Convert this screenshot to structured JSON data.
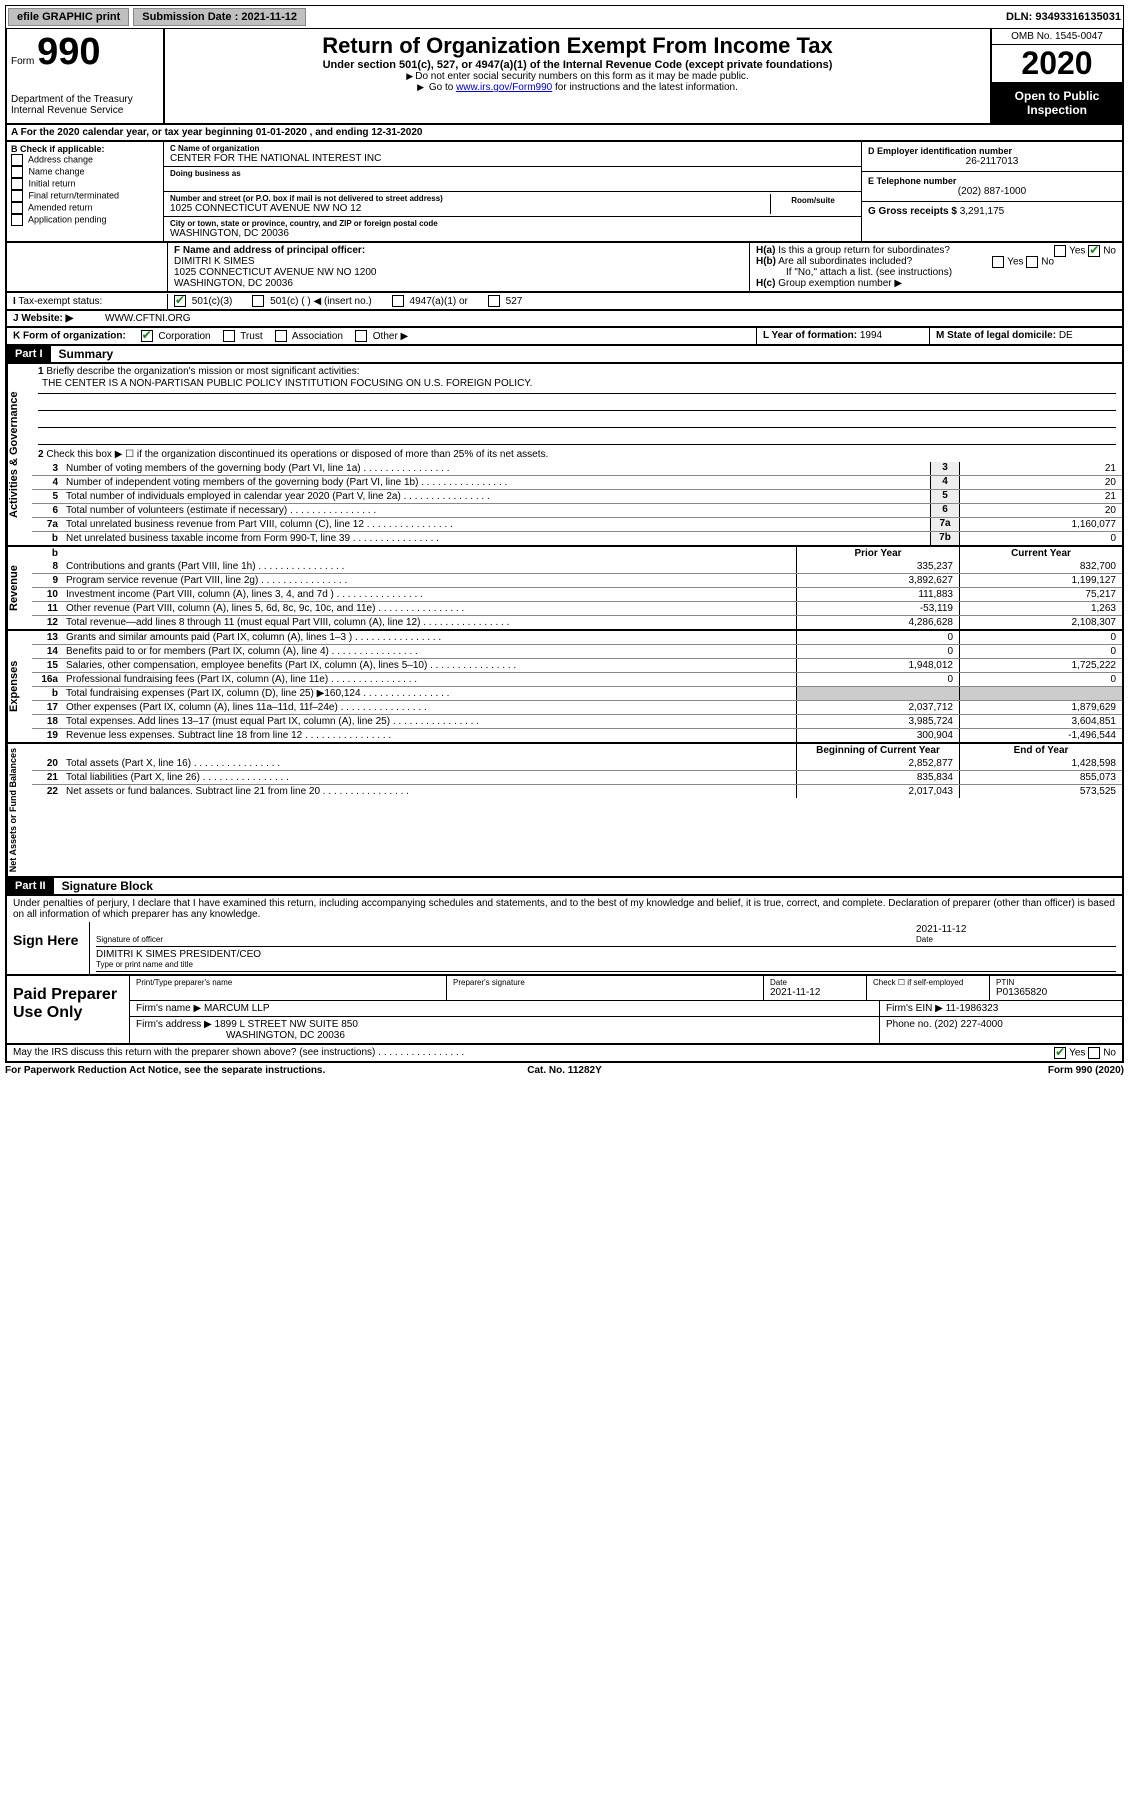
{
  "topbar": {
    "efile": "efile GRAPHIC print",
    "sub_label": "Submission Date : ",
    "sub_date": "2021-11-12",
    "dln": "DLN: 93493316135031"
  },
  "header": {
    "form_word": "Form",
    "form_num": "990",
    "dept": "Department of the Treasury\nInternal Revenue Service",
    "title": "Return of Organization Exempt From Income Tax",
    "subtitle": "Under section 501(c), 527, or 4947(a)(1) of the Internal Revenue Code (except private foundations)",
    "note1": "Do not enter social security numbers on this form as it may be made public.",
    "note2_pre": "Go to ",
    "note2_link": "www.irs.gov/Form990",
    "note2_post": " for instructions and the latest information.",
    "omb": "OMB No. 1545-0047",
    "year": "2020",
    "inspect": "Open to Public Inspection"
  },
  "row_a": "A  For the 2020 calendar year, or tax year beginning 01-01-2020    , and ending 12-31-2020",
  "box_b": {
    "label": "B Check if applicable:",
    "opts": [
      "Address change",
      "Name change",
      "Initial return",
      "Final return/terminated",
      "Amended return",
      "Application pending"
    ]
  },
  "box_c": {
    "name_lbl": "C Name of organization",
    "name": "CENTER FOR THE NATIONAL INTEREST INC",
    "dba_lbl": "Doing business as",
    "addr_lbl": "Number and street (or P.O. box if mail is not delivered to street address)",
    "suite_lbl": "Room/suite",
    "addr": "1025 CONNECTICUT AVENUE NW NO 12",
    "city_lbl": "City or town, state or province, country, and ZIP or foreign postal code",
    "city": "WASHINGTON, DC  20036"
  },
  "box_d": {
    "ein_lbl": "D Employer identification number",
    "ein": "26-2117013",
    "phone_lbl": "E Telephone number",
    "phone": "(202) 887-1000",
    "gross_lbl": "G Gross receipts $",
    "gross": "3,291,175"
  },
  "box_f": {
    "lbl": "F  Name and address of principal officer:",
    "name": "DIMITRI K SIMES",
    "addr1": "1025 CONNECTICUT AVENUE NW NO 1200",
    "addr2": "WASHINGTON, DC  20036"
  },
  "box_h": {
    "ha": "Is this a group return for subordinates?",
    "hb": "Are all subordinates included?",
    "hnote": "If \"No,\" attach a list. (see instructions)",
    "hc": "Group exemption number ▶"
  },
  "tax_status_lbl": "Tax-exempt status:",
  "tax_opts": [
    "501(c)(3)",
    "501(c) (   ) ◀ (insert no.)",
    "4947(a)(1) or",
    "527"
  ],
  "website_lbl": "Website: ▶",
  "website": "WWW.CFTNI.ORG",
  "box_k": "K Form of organization:",
  "k_opts": [
    "Corporation",
    "Trust",
    "Association",
    "Other ▶"
  ],
  "box_l_lbl": "L Year of formation:",
  "box_l": "1994",
  "box_m_lbl": "M State of legal domicile:",
  "box_m": "DE",
  "part1": {
    "hdr": "Part I",
    "title": "Summary",
    "q1": "Briefly describe the organization's mission or most significant activities:",
    "mission": "THE CENTER IS A NON-PARTISAN PUBLIC POLICY INSTITUTION FOCUSING ON U.S. FOREIGN POLICY.",
    "q2": "Check this box ▶ ☐  if the organization discontinued its operations or disposed of more than 25% of its net assets."
  },
  "gov_rows": [
    {
      "n": "3",
      "d": "Number of voting members of the governing body (Part VI, line 1a)",
      "rn": "3",
      "v": "21"
    },
    {
      "n": "4",
      "d": "Number of independent voting members of the governing body (Part VI, line 1b)",
      "rn": "4",
      "v": "20"
    },
    {
      "n": "5",
      "d": "Total number of individuals employed in calendar year 2020 (Part V, line 2a)",
      "rn": "5",
      "v": "21"
    },
    {
      "n": "6",
      "d": "Total number of volunteers (estimate if necessary)",
      "rn": "6",
      "v": "20"
    },
    {
      "n": "7a",
      "d": "Total unrelated business revenue from Part VIII, column (C), line 12",
      "rn": "7a",
      "v": "1,160,077"
    },
    {
      "n": "b",
      "d": "Net unrelated business taxable income from Form 990-T, line 39",
      "rn": "7b",
      "v": "0"
    }
  ],
  "col_hdrs": {
    "py": "Prior Year",
    "cy": "Current Year",
    "boy": "Beginning of Current Year",
    "eoy": "End of Year"
  },
  "rev_rows": [
    {
      "n": "8",
      "d": "Contributions and grants (Part VIII, line 1h)",
      "py": "335,237",
      "cy": "832,700"
    },
    {
      "n": "9",
      "d": "Program service revenue (Part VIII, line 2g)",
      "py": "3,892,627",
      "cy": "1,199,127"
    },
    {
      "n": "10",
      "d": "Investment income (Part VIII, column (A), lines 3, 4, and 7d )",
      "py": "111,883",
      "cy": "75,217"
    },
    {
      "n": "11",
      "d": "Other revenue (Part VIII, column (A), lines 5, 6d, 8c, 9c, 10c, and 11e)",
      "py": "-53,119",
      "cy": "1,263"
    },
    {
      "n": "12",
      "d": "Total revenue—add lines 8 through 11 (must equal Part VIII, column (A), line 12)",
      "py": "4,286,628",
      "cy": "2,108,307"
    }
  ],
  "exp_rows": [
    {
      "n": "13",
      "d": "Grants and similar amounts paid (Part IX, column (A), lines 1–3 )",
      "py": "0",
      "cy": "0"
    },
    {
      "n": "14",
      "d": "Benefits paid to or for members (Part IX, column (A), line 4)",
      "py": "0",
      "cy": "0"
    },
    {
      "n": "15",
      "d": "Salaries, other compensation, employee benefits (Part IX, column (A), lines 5–10)",
      "py": "1,948,012",
      "cy": "1,725,222"
    },
    {
      "n": "16a",
      "d": "Professional fundraising fees (Part IX, column (A), line 11e)",
      "py": "0",
      "cy": "0"
    },
    {
      "n": "b",
      "d": "Total fundraising expenses (Part IX, column (D), line 25) ▶160,124",
      "py": "",
      "cy": ""
    },
    {
      "n": "17",
      "d": "Other expenses (Part IX, column (A), lines 11a–11d, 11f–24e)",
      "py": "2,037,712",
      "cy": "1,879,629"
    },
    {
      "n": "18",
      "d": "Total expenses. Add lines 13–17 (must equal Part IX, column (A), line 25)",
      "py": "3,985,724",
      "cy": "3,604,851"
    },
    {
      "n": "19",
      "d": "Revenue less expenses. Subtract line 18 from line 12",
      "py": "300,904",
      "cy": "-1,496,544"
    }
  ],
  "na_rows": [
    {
      "n": "20",
      "d": "Total assets (Part X, line 16)",
      "py": "2,852,877",
      "cy": "1,428,598"
    },
    {
      "n": "21",
      "d": "Total liabilities (Part X, line 26)",
      "py": "835,834",
      "cy": "855,073"
    },
    {
      "n": "22",
      "d": "Net assets or fund balances. Subtract line 21 from line 20",
      "py": "2,017,043",
      "cy": "573,525"
    }
  ],
  "vtabs": {
    "gov": "Activities & Governance",
    "rev": "Revenue",
    "exp": "Expenses",
    "na": "Net Assets or Fund Balances"
  },
  "part2": {
    "hdr": "Part II",
    "title": "Signature Block",
    "text": "Under penalties of perjury, I declare that I have examined this return, including accompanying schedules and statements, and to the best of my knowledge and belief, it is true, correct, and complete. Declaration of preparer (other than officer) is based on all information of which preparer has any knowledge.",
    "sign_here": "Sign Here",
    "sig_officer": "Signature of officer",
    "sig_date": "2021-11-12",
    "date_lbl": "Date",
    "officer": "DIMITRI K SIMES  PRESIDENT/CEO",
    "type_lbl": "Type or print name and title"
  },
  "prep": {
    "title": "Paid Preparer Use Only",
    "h1": "Print/Type preparer's name",
    "h2": "Preparer's signature",
    "h3": "Date",
    "h3v": "2021-11-12",
    "h4": "Check ☐ if self-employed",
    "h5": "PTIN",
    "h5v": "P01365820",
    "firm_lbl": "Firm's name    ▶",
    "firm": "MARCUM LLP",
    "ein_lbl": "Firm's EIN ▶",
    "ein": "11-1986323",
    "addr_lbl": "Firm's address ▶",
    "addr1": "1899 L STREET NW SUITE 850",
    "addr2": "WASHINGTON, DC  20036",
    "phone_lbl": "Phone no.",
    "phone": "(202) 227-4000"
  },
  "discuss": "May the IRS discuss this return with the preparer shown above? (see instructions)",
  "footer": {
    "left": "For Paperwork Reduction Act Notice, see the separate instructions.",
    "center": "Cat. No. 11282Y",
    "right": "Form 990 (2020)"
  },
  "yes": "Yes",
  "no": "No"
}
